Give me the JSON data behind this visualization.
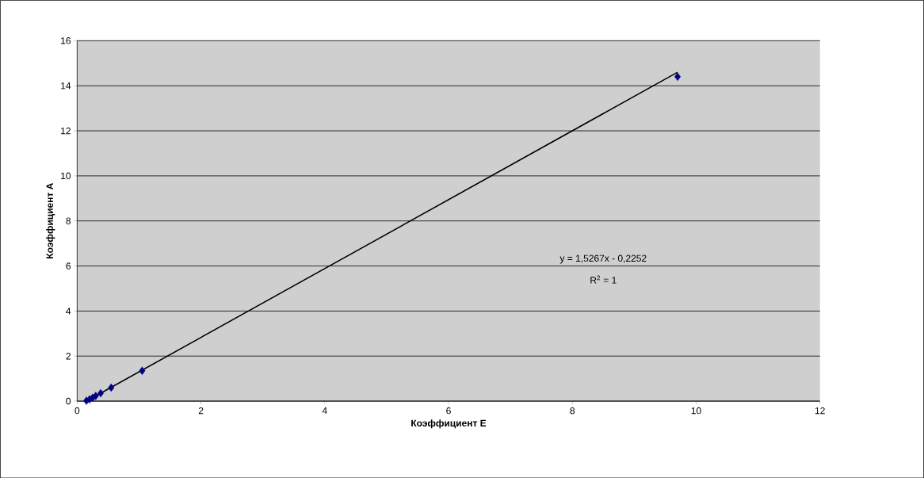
{
  "chart_data": {
    "type": "scatter",
    "xlabel": "Коэффициент E",
    "ylabel": "Коэффициент  A",
    "xlim": [
      0,
      12
    ],
    "ylim": [
      0,
      16
    ],
    "xticks": [
      0,
      2,
      4,
      6,
      8,
      10,
      12
    ],
    "yticks": [
      0,
      2,
      4,
      6,
      8,
      10,
      12,
      14,
      16
    ],
    "grid": "y",
    "marker": "diamond",
    "annotations": [
      "y = 1,5267x - 0,2252",
      "R$^{2}$ = 1"
    ],
    "series": [
      {
        "type": "line",
        "color": "#000000",
        "marker": "none",
        "x": [
          0.15,
          9.7
        ],
        "values": [
          0.0,
          14.6
        ]
      },
      {
        "color": "#000080",
        "x": [
          0.15,
          0.2,
          0.25,
          0.3,
          0.38,
          0.55,
          1.05,
          9.7
        ],
        "values": [
          0.02,
          0.08,
          0.15,
          0.23,
          0.35,
          0.6,
          1.35,
          14.4
        ]
      }
    ]
  }
}
